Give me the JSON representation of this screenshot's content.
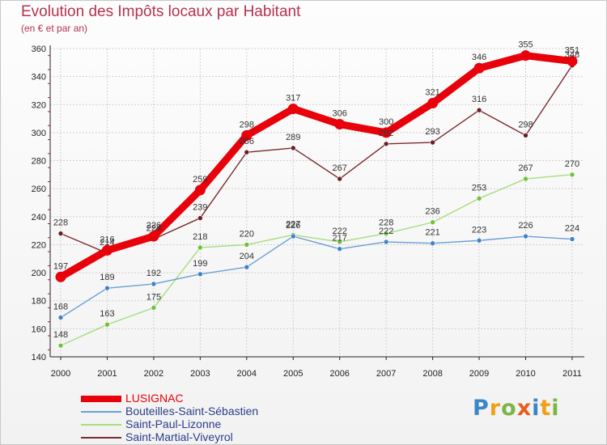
{
  "header": {
    "title": "Evolution des Impôts locaux par Habitant",
    "subtitle": "(en € et par an)"
  },
  "logo": {
    "letters": [
      "P",
      "r",
      "o",
      "x",
      "i",
      "t",
      "i"
    ],
    "colors": [
      "#3b86c6",
      "#f0a019",
      "#7ab648",
      "#e85c1b",
      "#3b86c6",
      "#f0a019",
      "#7ab648"
    ]
  },
  "colors": {
    "title": "#b5324f",
    "axis": "#222222",
    "grid": "#d0d0d0",
    "minor_tick": "#c2174a"
  },
  "chart_data": {
    "type": "line",
    "title": "Evolution des Impôts locaux par Habitant",
    "subtitle": "(en € et par an)",
    "xlabel": "",
    "ylabel": "",
    "x": [
      "2000",
      "2001",
      "2002",
      "2003",
      "2004",
      "2005",
      "2006",
      "2007",
      "2008",
      "2009",
      "2010",
      "2011"
    ],
    "ylim": [
      140,
      360
    ],
    "yticks": [
      140,
      160,
      180,
      200,
      220,
      240,
      260,
      280,
      300,
      320,
      340,
      360
    ],
    "grid": true,
    "legend_position": "bottom-left",
    "series": [
      {
        "name": "LUSIGNAC",
        "color": "#e8000b",
        "marker_color": "#e8000b",
        "width": "thick",
        "values": [
          197,
          216,
          226,
          259,
          298,
          317,
          306,
          300,
          321,
          346,
          355,
          351
        ]
      },
      {
        "name": "Bouteilles-Saint-Sébastien",
        "color": "#6a9fd4",
        "marker_color": "#3f82c9",
        "width": "thin",
        "values": [
          168,
          189,
          192,
          199,
          204,
          226,
          217,
          222,
          221,
          223,
          226,
          224
        ]
      },
      {
        "name": "Saint-Paul-Lizonne",
        "color": "#a6dd7e",
        "marker_color": "#6ec33a",
        "width": "thin",
        "values": [
          148,
          163,
          175,
          218,
          220,
          227,
          222,
          228,
          236,
          253,
          267,
          270
        ]
      },
      {
        "name": "Saint-Martial-Viveyrol",
        "color": "#7a2a30",
        "marker_color": "#6b1d22",
        "width": "thin",
        "values": [
          228,
          214,
          224,
          239,
          286,
          289,
          267,
          292,
          293,
          316,
          298,
          348
        ]
      }
    ],
    "visible_labels": [
      [
        "197",
        "216",
        "226",
        "259",
        "298",
        "317",
        "306",
        "300",
        "321",
        "346",
        "355",
        "351"
      ],
      [
        "168",
        "189",
        "192",
        "199",
        "204",
        "226",
        "217",
        "222",
        "221",
        "223",
        "226",
        "224"
      ],
      [
        "148",
        "163",
        "175",
        "218",
        "220",
        "227",
        "222",
        "228",
        "236",
        "253",
        "267",
        "270"
      ],
      [
        "228",
        "214",
        "224",
        "239",
        "286",
        "289",
        "267",
        "292",
        "293",
        "316",
        "298",
        "348"
      ]
    ]
  }
}
